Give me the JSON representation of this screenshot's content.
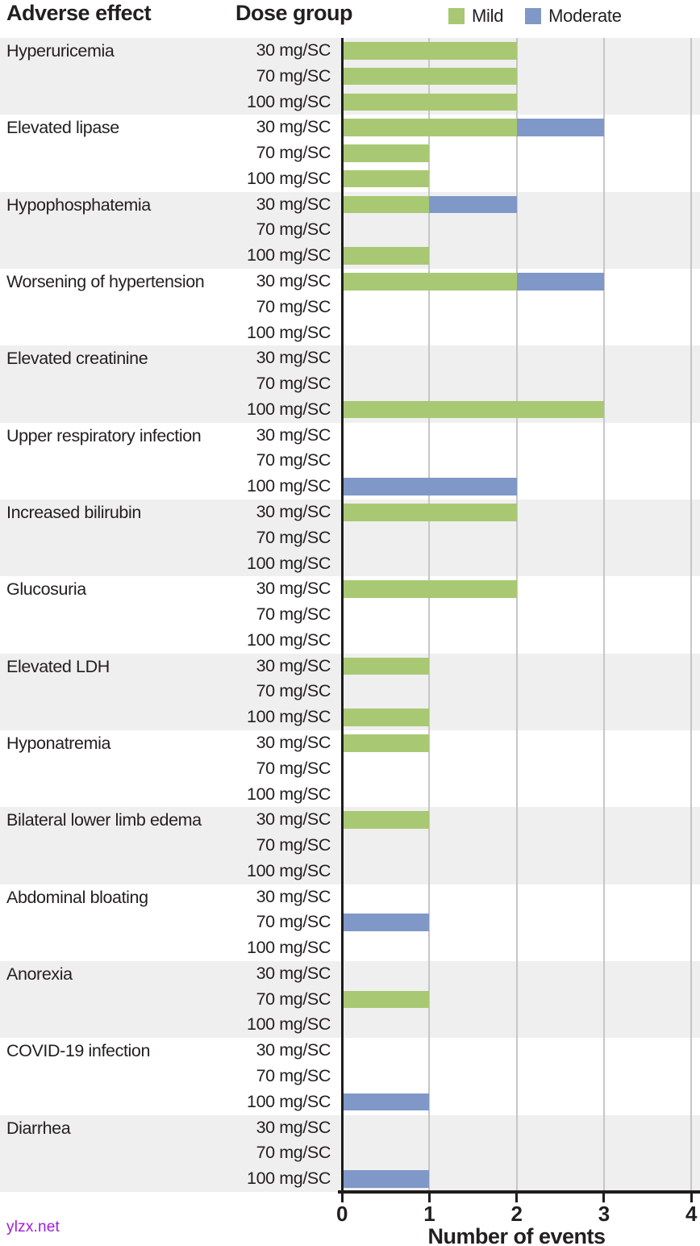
{
  "header": {
    "col1": "Adverse effect",
    "col2": "Dose group"
  },
  "legend": [
    {
      "name": "Mild",
      "color": "#a9c873"
    },
    {
      "name": "Moderate",
      "color": "#7f98c8"
    }
  ],
  "watermark": "ylzx.net",
  "colors": {
    "mild": "#a9c873",
    "moderate": "#7f98c8",
    "band_shaded": "#efefef",
    "band_plain": "#ffffff",
    "gridline": "#c6c6c6",
    "axis": "#1f1c1d",
    "text": "#231f20",
    "watermark": "#a21cd8"
  },
  "chart_data": {
    "type": "bar",
    "orientation": "horizontal",
    "stacked": true,
    "title": "",
    "xlabel": "Number of events",
    "ylabel_col1": "Adverse effect",
    "ylabel_col2": "Dose group",
    "xlim": [
      0,
      4
    ],
    "xticks": [
      "0",
      "1",
      "2",
      "3",
      "4"
    ],
    "grid": true,
    "legend_position": "top-right",
    "series_names": [
      "Mild",
      "Moderate"
    ],
    "dose_labels": [
      "30 mg/SC",
      "70 mg/SC",
      "100 mg/SC"
    ],
    "groups": [
      {
        "effect": "Hyperuricemia",
        "values": [
          [
            2,
            0
          ],
          [
            2,
            0
          ],
          [
            2,
            0
          ]
        ]
      },
      {
        "effect": "Elevated lipase",
        "values": [
          [
            2,
            1
          ],
          [
            1,
            0
          ],
          [
            1,
            0
          ]
        ]
      },
      {
        "effect": "Hypophosphatemia",
        "values": [
          [
            1,
            1
          ],
          [
            0,
            0
          ],
          [
            1,
            0
          ]
        ]
      },
      {
        "effect": "Worsening of hypertension",
        "values": [
          [
            2,
            1
          ],
          [
            0,
            0
          ],
          [
            0,
            0
          ]
        ]
      },
      {
        "effect": "Elevated creatinine",
        "values": [
          [
            0,
            0
          ],
          [
            0,
            0
          ],
          [
            3,
            0
          ]
        ]
      },
      {
        "effect": "Upper respiratory infection",
        "values": [
          [
            0,
            0
          ],
          [
            0,
            0
          ],
          [
            0,
            2
          ]
        ]
      },
      {
        "effect": "Increased bilirubin",
        "values": [
          [
            2,
            0
          ],
          [
            0,
            0
          ],
          [
            0,
            0
          ]
        ]
      },
      {
        "effect": "Glucosuria",
        "values": [
          [
            2,
            0
          ],
          [
            0,
            0
          ],
          [
            0,
            0
          ]
        ]
      },
      {
        "effect": "Elevated LDH",
        "values": [
          [
            1,
            0
          ],
          [
            0,
            0
          ],
          [
            1,
            0
          ]
        ]
      },
      {
        "effect": "Hyponatremia",
        "values": [
          [
            1,
            0
          ],
          [
            0,
            0
          ],
          [
            0,
            0
          ]
        ]
      },
      {
        "effect": "Bilateral lower limb edema",
        "values": [
          [
            1,
            0
          ],
          [
            0,
            0
          ],
          [
            0,
            0
          ]
        ]
      },
      {
        "effect": "Abdominal bloating",
        "values": [
          [
            0,
            0
          ],
          [
            0,
            1
          ],
          [
            0,
            0
          ]
        ]
      },
      {
        "effect": "Anorexia",
        "values": [
          [
            0,
            0
          ],
          [
            1,
            0
          ],
          [
            0,
            0
          ]
        ]
      },
      {
        "effect": "COVID-19 infection",
        "values": [
          [
            0,
            0
          ],
          [
            0,
            0
          ],
          [
            0,
            1
          ]
        ]
      },
      {
        "effect": "Diarrhea",
        "values": [
          [
            0,
            0
          ],
          [
            0,
            0
          ],
          [
            0,
            1
          ]
        ]
      }
    ]
  }
}
